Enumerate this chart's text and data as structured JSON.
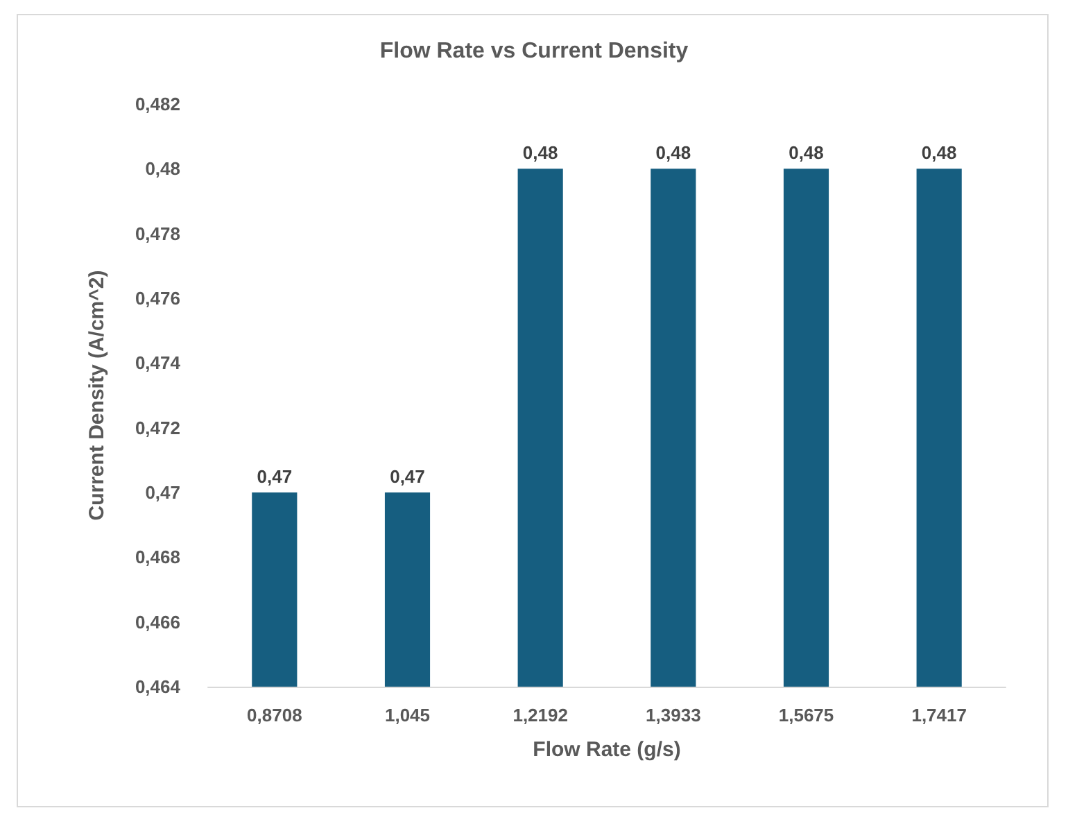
{
  "chart_data": {
    "type": "bar",
    "title": "Flow Rate vs Current Density",
    "xlabel": "Flow Rate (g/s)",
    "ylabel": "Current Density (A/cm^2)",
    "categories": [
      "0,8708",
      "1,045",
      "1,2192",
      "1,3933",
      "1,5675",
      "1,7417"
    ],
    "values": [
      0.47,
      0.47,
      0.48,
      0.48,
      0.48,
      0.48
    ],
    "value_labels": [
      "0,47",
      "0,47",
      "0,48",
      "0,48",
      "0,48",
      "0,48"
    ],
    "ylim": [
      0.464,
      0.482
    ],
    "yticks": [
      {
        "value": 0.464,
        "label": "0,464"
      },
      {
        "value": 0.466,
        "label": "0,466"
      },
      {
        "value": 0.468,
        "label": "0,468"
      },
      {
        "value": 0.47,
        "label": "0,47"
      },
      {
        "value": 0.472,
        "label": "0,472"
      },
      {
        "value": 0.474,
        "label": "0,474"
      },
      {
        "value": 0.476,
        "label": "0,476"
      },
      {
        "value": 0.478,
        "label": "0,478"
      },
      {
        "value": 0.48,
        "label": "0,48"
      },
      {
        "value": 0.482,
        "label": "0,482"
      }
    ],
    "color": "#165e80"
  }
}
